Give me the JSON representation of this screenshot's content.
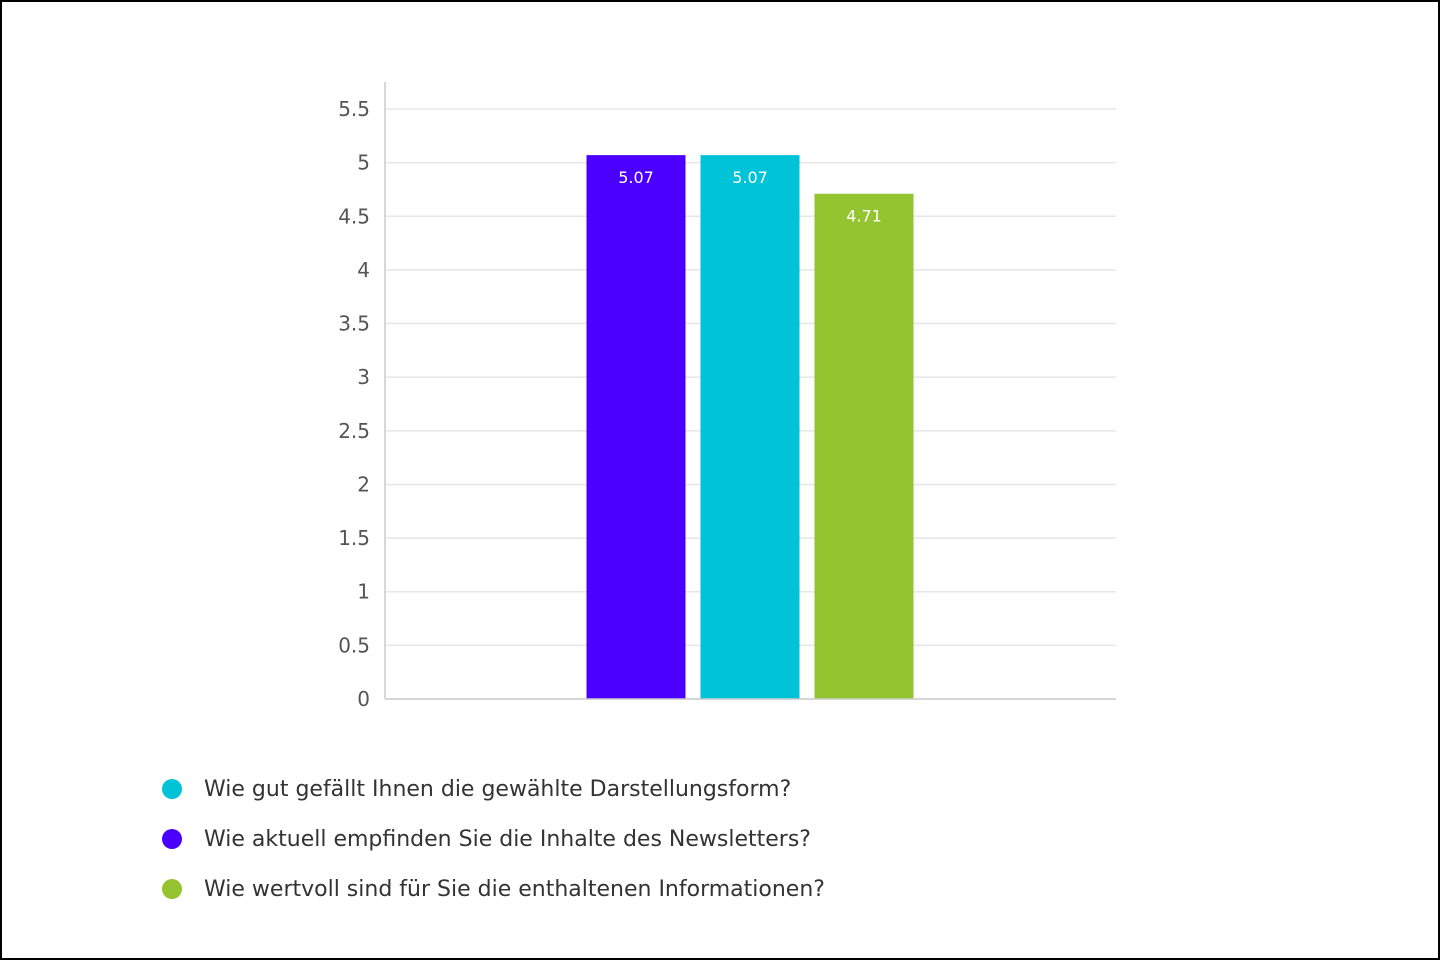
{
  "chart_data": {
    "type": "bar",
    "categories": [
      ""
    ],
    "series": [
      {
        "name": "Wie aktuell empfinden Sie die Inhalte des Newsletters?",
        "values": [
          5.07
        ],
        "color": "#4b00ff",
        "label": "5.07"
      },
      {
        "name": "Wie gut gefällt Ihnen die gewählte Darstellungsform?",
        "values": [
          5.07
        ],
        "color": "#00c3d8",
        "label": "5.07"
      },
      {
        "name": "Wie wertvoll sind für Sie die enthaltenen Informationen?",
        "values": [
          4.71
        ],
        "color": "#94c530",
        "label": "4.71"
      }
    ],
    "ylim": [
      0,
      5.5
    ],
    "yticks": [
      "0",
      "0.5",
      "1",
      "1.5",
      "2",
      "2.5",
      "3",
      "3.5",
      "4",
      "4.5",
      "5",
      "5.5"
    ],
    "ytick_values": [
      0,
      0.5,
      1,
      1.5,
      2,
      2.5,
      3,
      3.5,
      4,
      4.5,
      5,
      5.5
    ],
    "grid": true,
    "legend_position": "bottom-left",
    "title": "",
    "xlabel": "",
    "ylabel": ""
  },
  "legend": {
    "items": [
      {
        "label": "Wie gut gefällt Ihnen die gewählte Darstellungsform?",
        "color": "#00c3d8"
      },
      {
        "label": "Wie aktuell empfinden Sie die Inhalte des Newsletters?",
        "color": "#4b00ff"
      },
      {
        "label": "Wie wertvoll sind für Sie die enthaltenen Informationen?",
        "color": "#94c530"
      }
    ]
  },
  "colors": {
    "grid": "#e6e6e6",
    "axis": "#cccccc",
    "tick_text": "#555555",
    "data_label": "#ffffff"
  }
}
